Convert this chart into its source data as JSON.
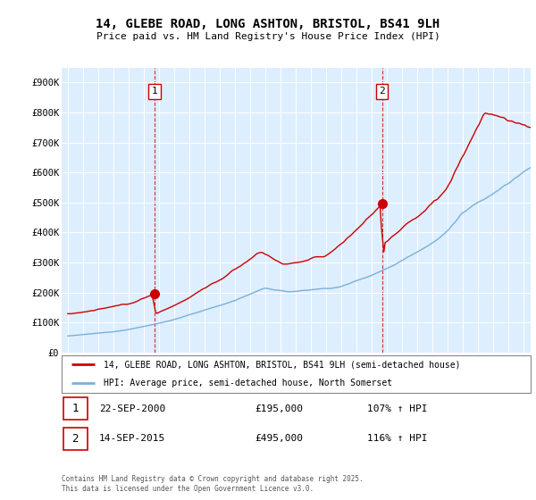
{
  "title": "14, GLEBE ROAD, LONG ASHTON, BRISTOL, BS41 9LH",
  "subtitle": "Price paid vs. HM Land Registry's House Price Index (HPI)",
  "ylim": [
    0,
    950000
  ],
  "yticks": [
    0,
    100000,
    200000,
    300000,
    400000,
    500000,
    600000,
    700000,
    800000,
    900000
  ],
  "ytick_labels": [
    "£0",
    "£100K",
    "£200K",
    "£300K",
    "£400K",
    "£500K",
    "£600K",
    "£700K",
    "£800K",
    "£900K"
  ],
  "xlim_start": 1994.6,
  "xlim_end": 2025.5,
  "bg_color": "#ddeeff",
  "red_line_color": "#cc0000",
  "blue_line_color": "#7ab0d8",
  "ann1_x": 2000.72,
  "ann1_y": 195000,
  "ann1_label": "1",
  "ann2_x": 2015.71,
  "ann2_y": 495000,
  "ann2_label": "2",
  "legend1": "14, GLEBE ROAD, LONG ASHTON, BRISTOL, BS41 9LH (semi-detached house)",
  "legend2": "HPI: Average price, semi-detached house, North Somerset",
  "footer": "Contains HM Land Registry data © Crown copyright and database right 2025.\nThis data is licensed under the Open Government Licence v3.0.",
  "table_row1": [
    "1",
    "22-SEP-2000",
    "£195,000",
    "107% ↑ HPI"
  ],
  "table_row2": [
    "2",
    "14-SEP-2015",
    "£495,000",
    "116% ↑ HPI"
  ]
}
